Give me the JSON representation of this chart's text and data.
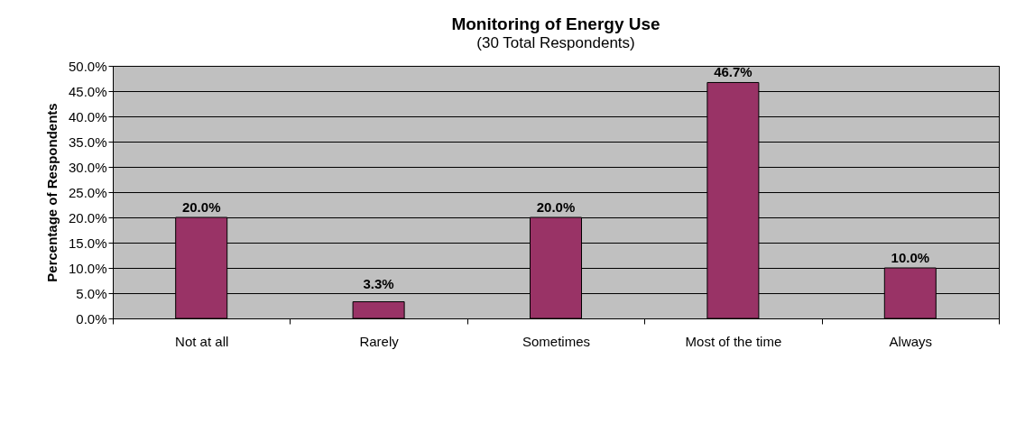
{
  "chart_data": {
    "type": "bar",
    "title": "Monitoring of Energy Use",
    "subtitle": "(30 Total Respondents)",
    "ylabel": "Percentage of Respondents",
    "categories": [
      "Not at all",
      "Rarely",
      "Sometimes",
      "Most of the time",
      "Always"
    ],
    "values": [
      20.0,
      3.3,
      20.0,
      46.7,
      10.0
    ],
    "value_labels": [
      "20.0%",
      "3.3%",
      "20.0%",
      "46.7%",
      "10.0%"
    ],
    "color": "#993366",
    "ylim": [
      0,
      50
    ],
    "yticks": [
      {
        "value": 0,
        "label": "0.0%"
      },
      {
        "value": 5,
        "label": "5.0%"
      },
      {
        "value": 10,
        "label": "10.0%"
      },
      {
        "value": 15,
        "label": "15.0%"
      },
      {
        "value": 20,
        "label": "20.0%"
      },
      {
        "value": 25,
        "label": "25.0%"
      },
      {
        "value": 30,
        "label": "30.0%"
      },
      {
        "value": 35,
        "label": "35.0%"
      },
      {
        "value": 40,
        "label": "40.0%"
      },
      {
        "value": 45,
        "label": "45.0%"
      },
      {
        "value": 50,
        "label": "50.0%"
      }
    ],
    "grid": "y"
  }
}
